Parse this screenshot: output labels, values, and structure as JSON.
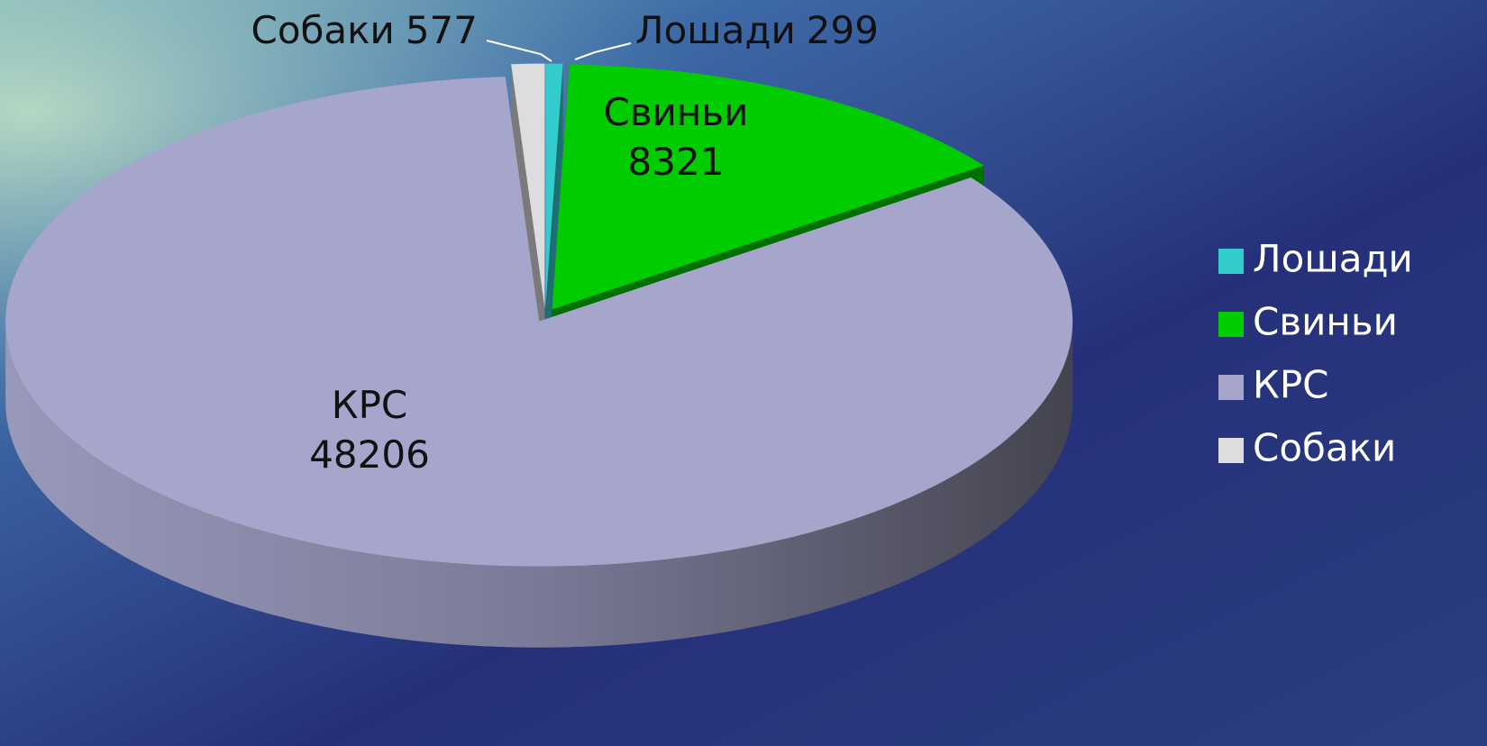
{
  "chart_data": {
    "type": "pie3d",
    "categories": [
      "Лошади",
      "Свиньи",
      "КРС",
      "Собаки"
    ],
    "values": [
      299,
      8321,
      48206,
      577
    ],
    "colors": [
      "#33cccc",
      "#00cc00",
      "#a6a6cc",
      "#dddddd"
    ],
    "legend": "right"
  }
}
